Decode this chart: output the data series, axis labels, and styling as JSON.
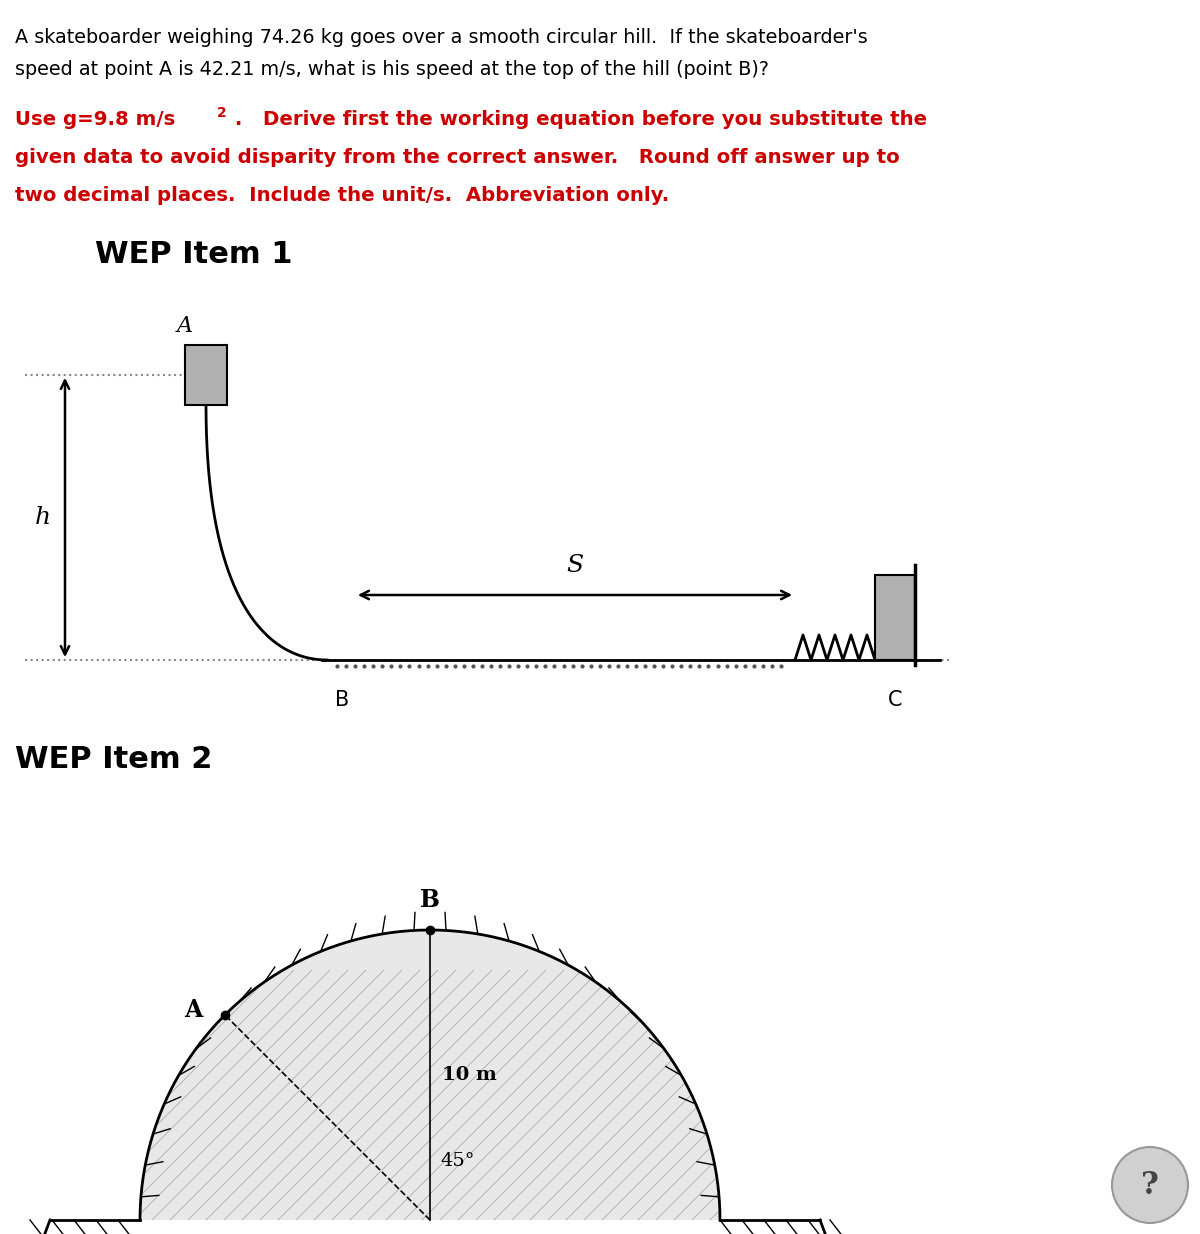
{
  "bg_color": "#ffffff",
  "red_color": "#cc0000",
  "title_line1": "A skateboarder weighing 74.26 kg goes over a smooth circular hill.  If the skateboarder's",
  "title_line2": "speed at point A is 42.21 m/s, what is his speed at the top of the hill (point B)?",
  "red_line1a": "Use g=9.8 m/s",
  "red_line1b": " .   Derive first the working equation before you substitute the",
  "red_line2": "given data to avoid disparity from the correct answer.   Round off answer up to",
  "red_line3": "two decimal places.  Include the unit/s.  Abbreviation only.",
  "wep1_label": "WEP Item 1",
  "wep2_label": "WEP Item 2"
}
